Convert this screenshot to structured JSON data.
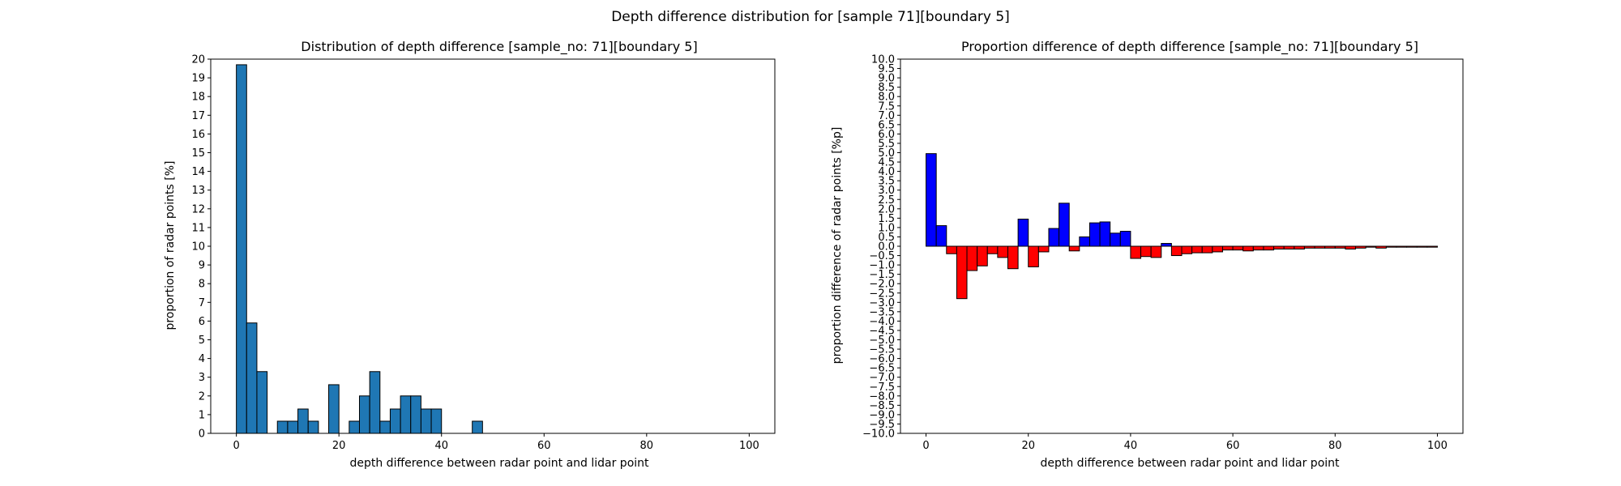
{
  "suptitle": "Depth difference distribution for [sample 71][boundary 5]",
  "chart_data": [
    {
      "type": "bar",
      "title": "Distribution of depth difference [sample_no: 71][boundary 5]",
      "xlabel": "depth difference between radar point and lidar point",
      "ylabel": "proportion of radar points [%]",
      "xlim": [
        -5,
        105
      ],
      "ylim": [
        0,
        20
      ],
      "xticks": [
        0,
        20,
        40,
        60,
        80,
        100
      ],
      "yticks": [
        0,
        1,
        2,
        3,
        4,
        5,
        6,
        7,
        8,
        9,
        10,
        11,
        12,
        13,
        14,
        15,
        16,
        17,
        18,
        19,
        20
      ],
      "bin_width": 2,
      "bar_color": "#1f77b4",
      "edge_color": "#000000",
      "grid": false,
      "x": [
        0,
        2,
        4,
        6,
        8,
        10,
        12,
        14,
        16,
        18,
        20,
        22,
        24,
        26,
        28,
        30,
        32,
        34,
        36,
        38,
        40,
        42,
        44,
        46,
        48,
        50,
        52,
        54,
        56,
        58,
        60,
        62,
        64,
        66,
        68,
        70,
        72,
        74,
        76,
        78,
        80,
        82,
        84,
        86,
        88,
        90,
        92,
        94,
        96,
        98
      ],
      "values": [
        19.7,
        5.9,
        3.3,
        0,
        0.65,
        0.65,
        1.3,
        0.65,
        0,
        2.6,
        0,
        0.65,
        2.0,
        3.3,
        0.65,
        1.3,
        2.0,
        2.0,
        1.3,
        1.3,
        0,
        0,
        0,
        0.65,
        0,
        0,
        0,
        0,
        0,
        0,
        0,
        0,
        0,
        0,
        0,
        0,
        0,
        0,
        0,
        0,
        0,
        0,
        0,
        0,
        0,
        0,
        0,
        0,
        0,
        0
      ]
    },
    {
      "type": "bar",
      "title": "Proportion difference of depth difference [sample_no: 71][boundary 5]",
      "xlabel": "depth difference between radar point and lidar point",
      "ylabel": "proportion difference of radar points [%p]",
      "xlim": [
        -5,
        105
      ],
      "ylim": [
        -10,
        10
      ],
      "xticks": [
        0,
        20,
        40,
        60,
        80,
        100
      ],
      "yticks": [
        -10.0,
        -9.5,
        -9.0,
        -8.5,
        -8.0,
        -7.5,
        -7.0,
        -6.5,
        -6.0,
        -5.5,
        -5.0,
        -4.5,
        -4.0,
        -3.5,
        -3.0,
        -2.5,
        -2.0,
        -1.5,
        -1.0,
        -0.5,
        0.0,
        0.5,
        1.0,
        1.5,
        2.0,
        2.5,
        3.0,
        3.5,
        4.0,
        4.5,
        5.0,
        5.5,
        6.0,
        6.5,
        7.0,
        7.5,
        8.0,
        8.5,
        9.0,
        9.5,
        10.0
      ],
      "bin_width": 2,
      "positive_color": "#0000ff",
      "negative_color": "#ff0000",
      "edge_color": "#000000",
      "grid": false,
      "x": [
        0,
        2,
        4,
        6,
        8,
        10,
        12,
        14,
        16,
        18,
        20,
        22,
        24,
        26,
        28,
        30,
        32,
        34,
        36,
        38,
        40,
        42,
        44,
        46,
        48,
        50,
        52,
        54,
        56,
        58,
        60,
        62,
        64,
        66,
        68,
        70,
        72,
        74,
        76,
        78,
        80,
        82,
        84,
        86,
        88,
        90,
        92,
        94,
        96,
        98
      ],
      "values": [
        4.95,
        1.1,
        -0.4,
        -2.8,
        -1.3,
        -1.05,
        -0.4,
        -0.6,
        -1.2,
        1.45,
        -1.1,
        -0.3,
        0.95,
        2.3,
        -0.25,
        0.5,
        1.25,
        1.3,
        0.7,
        0.8,
        -0.65,
        -0.55,
        -0.6,
        0.15,
        -0.5,
        -0.4,
        -0.35,
        -0.35,
        -0.3,
        -0.2,
        -0.2,
        -0.25,
        -0.2,
        -0.2,
        -0.15,
        -0.15,
        -0.15,
        -0.1,
        -0.1,
        -0.1,
        -0.1,
        -0.15,
        -0.1,
        -0.05,
        -0.1,
        -0.05,
        -0.05,
        -0.05,
        -0.05,
        -0.05
      ]
    }
  ]
}
